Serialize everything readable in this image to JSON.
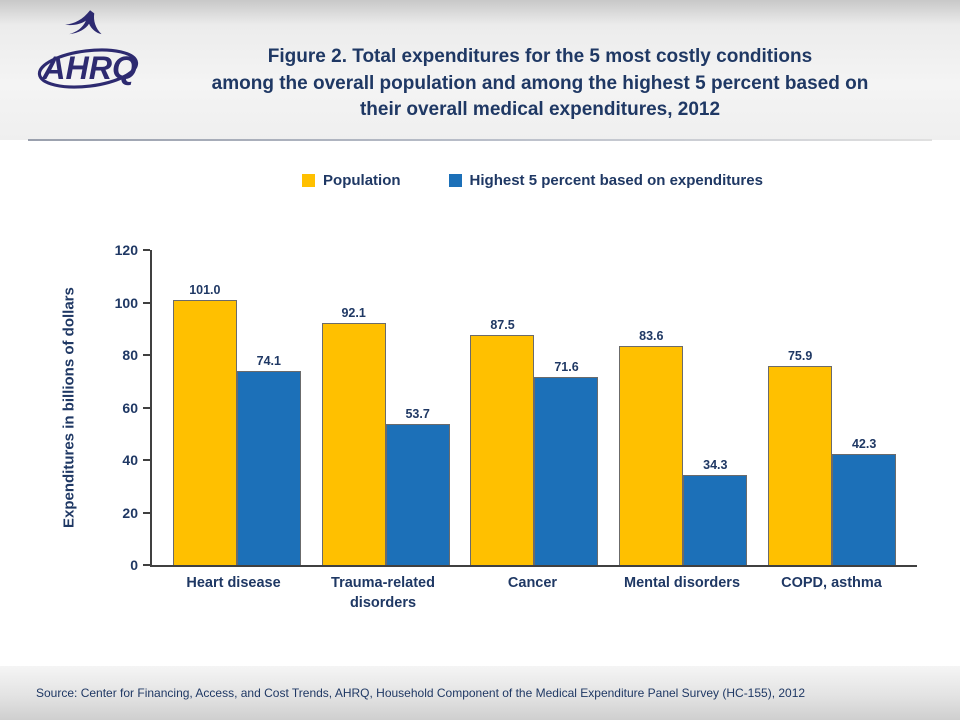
{
  "header": {
    "logo_text": "AHRQ",
    "title_lines": [
      "Figure 2. Total expenditures for the 5 most costly conditions",
      "among the overall population and among the highest 5 percent based on",
      "their overall medical expenditures, 2012"
    ]
  },
  "legend": [
    {
      "label": "Population",
      "color": "#FFC000"
    },
    {
      "label": "Highest 5 percent based on expenditures",
      "color": "#1C70B8"
    }
  ],
  "chart_data": {
    "type": "bar",
    "title": "Figure 2. Total expenditures for the 5 most costly conditions among the overall population and among the highest 5 percent based on their overall medical expenditures, 2012",
    "categories": [
      "Heart disease",
      "Trauma-related disorders",
      "Cancer",
      "Mental disorders",
      "COPD, asthma"
    ],
    "series": [
      {
        "name": "Population",
        "color": "#FFC000",
        "values": [
          101.0,
          92.1,
          87.5,
          83.6,
          75.9
        ]
      },
      {
        "name": "Highest 5 percent based on expenditures",
        "color": "#1C70B8",
        "values": [
          74.1,
          53.7,
          71.6,
          34.3,
          42.3
        ]
      }
    ],
    "xlabel": "",
    "ylabel": "Expenditures in billions of dollars",
    "ylim": [
      0,
      120
    ],
    "yticks": [
      0,
      20,
      40,
      60,
      80,
      100,
      120
    ],
    "grid": false,
    "legend_position": "top"
  },
  "footer": {
    "source": "Source: Center for Financing, Access, and Cost Trends, AHRQ, Household Component of the Medical Expenditure Panel Survey (HC-155), 2012"
  }
}
